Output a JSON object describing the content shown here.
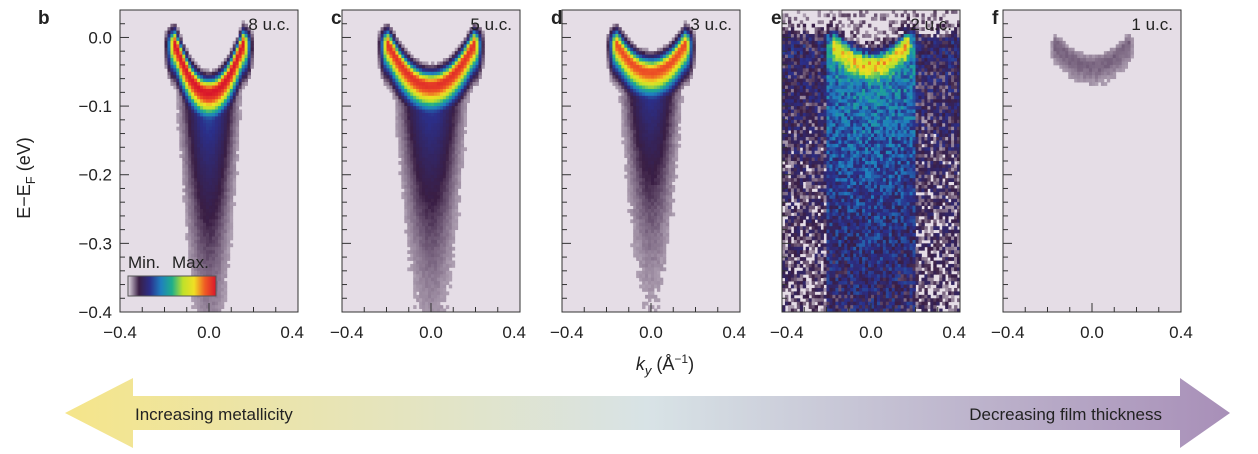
{
  "chart_data": {
    "type": "heatmap",
    "ylabel": {
      "main": "E−E",
      "sub": "F",
      "unit": " (eV)"
    },
    "xlabel": {
      "main": "k",
      "sub": "y",
      "unit": " (Å",
      "sup": "−1",
      "close": ")"
    },
    "xlim": [
      -0.4,
      0.4
    ],
    "ylim": [
      -0.4,
      0.04
    ],
    "xticks": [
      "−0.4",
      "0.0",
      "0.4"
    ],
    "yticks": [
      {
        "value": 0.0,
        "label": "0.0"
      },
      {
        "value": -0.1,
        "label": "−0.1"
      },
      {
        "value": -0.2,
        "label": "−0.2"
      },
      {
        "value": -0.3,
        "label": "−0.3"
      },
      {
        "value": -0.4,
        "label": "−0.4"
      }
    ],
    "panels": [
      {
        "letter": "b",
        "thickness": "8 u.c.",
        "intensity": 1.0,
        "band_top": -0.01,
        "band_bottom": -0.08,
        "k_edge": 0.15,
        "smear": 0.3,
        "noise": 0.08
      },
      {
        "letter": "c",
        "thickness": "5 u.c.",
        "intensity": 0.95,
        "band_top": -0.01,
        "band_bottom": -0.07,
        "k_edge": 0.19,
        "smear": 0.28,
        "noise": 0.08
      },
      {
        "letter": "d",
        "thickness": "3 u.c.",
        "intensity": 0.9,
        "band_top": -0.01,
        "band_bottom": -0.05,
        "k_edge": 0.15,
        "smear": 0.25,
        "noise": 0.1
      },
      {
        "letter": "e",
        "thickness": "2 u.c.",
        "intensity": 0.75,
        "band_top": -0.01,
        "band_bottom": -0.04,
        "k_edge": 0.16,
        "smear": 0.95,
        "noise": 0.35
      },
      {
        "letter": "f",
        "thickness": "1 u.c.",
        "intensity": 0.08,
        "band_top": -0.01,
        "band_bottom": -0.04,
        "k_edge": 0.16,
        "smear": 0.2,
        "noise": 0.1
      }
    ],
    "colorbar": {
      "min_label": "Min.",
      "max_label": "Max."
    },
    "colormap": [
      "#e5dde6",
      "#3a1e44",
      "#2b2f8a",
      "#1f7fbf",
      "#1fae8a",
      "#bfe12a",
      "#f0e024",
      "#ef5a24",
      "#d9162b"
    ]
  },
  "arrow": {
    "left_label": "Increasing metallicity",
    "right_label": "Decreasing film thickness",
    "left_color": "#f5e58a",
    "mid_color": "#d8e3e6",
    "right_color": "#a88fb8"
  }
}
